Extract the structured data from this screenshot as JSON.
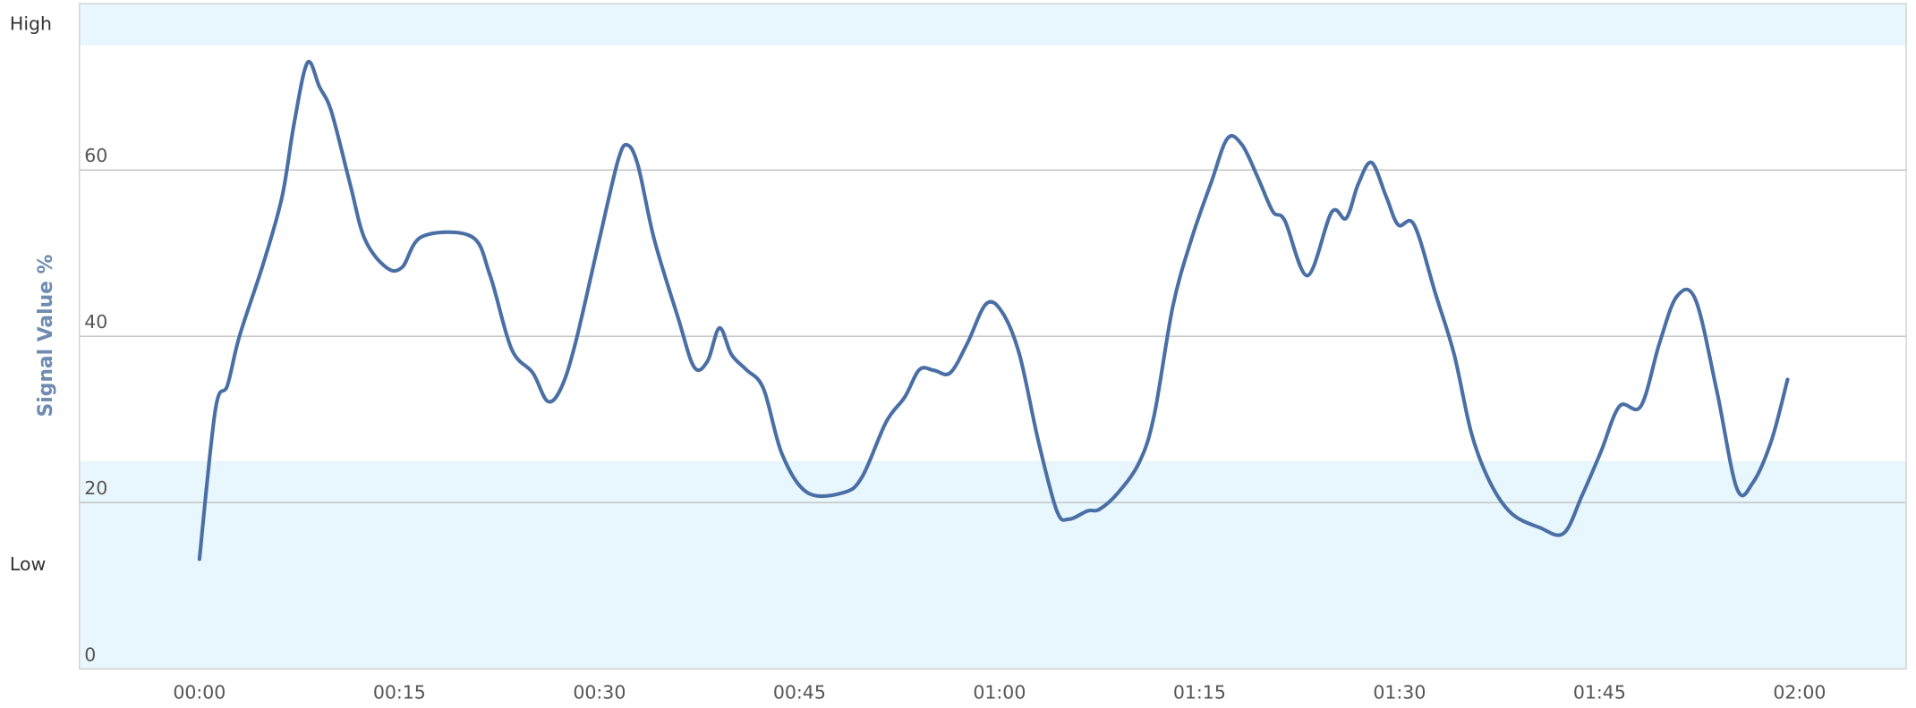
{
  "chart_data": {
    "type": "line",
    "y_label": "Signal Value %",
    "x": [
      0,
      1.2,
      2.1,
      3.0,
      4.8,
      6.2,
      7.1,
      8.1,
      9.0,
      9.9,
      11.3,
      12.4,
      14.0,
      15.2,
      16.7,
      20.4,
      21.8,
      23.4,
      25.0,
      26.1,
      27.1,
      28.2,
      30.0,
      31.4,
      32.1,
      32.9,
      34.1,
      35.9,
      37.1,
      38.1,
      39.0,
      39.9,
      41.0,
      42.3,
      43.7,
      45.6,
      48.3,
      49.7,
      51.5,
      52.9,
      54.0,
      55.1,
      56.3,
      57.6,
      59.0,
      60.2,
      61.5,
      62.9,
      64.3,
      65.2,
      66.6,
      67.5,
      68.9,
      70.5,
      71.6,
      73.0,
      74.4,
      75.9,
      77.1,
      78.2,
      79.4,
      80.5,
      81.4,
      83.1,
      84.9,
      86.0,
      86.9,
      87.9,
      89.0,
      89.9,
      91.1,
      92.7,
      94.1,
      95.4,
      96.8,
      98.4,
      100.5,
      102.3,
      103.7,
      105.1,
      106.5,
      108.1,
      109.5,
      110.8,
      112.2,
      113.8,
      115.3,
      116.5,
      117.9,
      119.1
    ],
    "series": [
      {
        "name": "Signal",
        "color": "#4a6fa5",
        "values": [
          13.2,
          31.2,
          34.1,
          40,
          48.8,
          56.8,
          65.6,
          72.9,
          70,
          67,
          58.3,
          51.7,
          48.3,
          48.3,
          52,
          52,
          47.3,
          38.5,
          35.6,
          32.2,
          33.7,
          39.2,
          51.7,
          61.2,
          63,
          60.5,
          51.7,
          42.2,
          36.3,
          37,
          41,
          37.8,
          36,
          33.7,
          25.8,
          21.2,
          21.2,
          23.1,
          29.7,
          32.7,
          36,
          35.9,
          35.6,
          39.2,
          43.9,
          42.9,
          37.8,
          27.5,
          19,
          18,
          19,
          19.2,
          21.2,
          24.9,
          30.5,
          43.6,
          51.7,
          58.6,
          63.8,
          63,
          59,
          55,
          53.9,
          47.3,
          54.9,
          54.2,
          58.3,
          60.9,
          56.8,
          53.4,
          53.4,
          45.1,
          37.8,
          28.3,
          22.4,
          18.7,
          17,
          16.3,
          20.9,
          26.1,
          31.6,
          31.6,
          39.2,
          44.8,
          44.4,
          33.4,
          21.7,
          22.4,
          27.5,
          34.8
        ]
      }
    ],
    "xlim": [
      -9,
      128
    ],
    "xticks": [
      {
        "value": 0,
        "label": "00:00"
      },
      {
        "value": 15,
        "label": "00:15"
      },
      {
        "value": 30,
        "label": "00:30"
      },
      {
        "value": 45,
        "label": "00:45"
      },
      {
        "value": 60,
        "label": "01:00"
      },
      {
        "value": 75,
        "label": "01:15"
      },
      {
        "value": 90,
        "label": "01:30"
      },
      {
        "value": 105,
        "label": "01:45"
      },
      {
        "value": 120,
        "label": "02:00"
      }
    ],
    "ylim": [
      0,
      80
    ],
    "yticks": [
      0,
      20,
      40,
      60
    ],
    "grid": true,
    "bands": [
      {
        "label": "Low",
        "range": [
          0,
          25
        ]
      },
      {
        "label": "High",
        "range": [
          75,
          80
        ]
      }
    ],
    "band_color": "#e8f6fd"
  }
}
